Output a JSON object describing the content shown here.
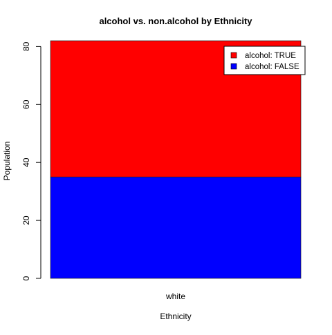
{
  "chart_data": {
    "type": "bar",
    "stacked": true,
    "title": "alcohol vs. non.alcohol by Ethnicity",
    "xlabel": "Ethnicity",
    "ylabel": "Population",
    "categories": [
      "white"
    ],
    "series": [
      {
        "name": "alcohol: FALSE",
        "values": [
          35
        ],
        "color": "#0000FF"
      },
      {
        "name": "alcohol: TRUE",
        "values": [
          47
        ],
        "color": "#FF0000"
      }
    ],
    "legend_order": [
      "alcohol: TRUE",
      "alcohol: FALSE"
    ],
    "ylim": [
      0,
      82
    ],
    "yticks": [
      0,
      20,
      40,
      60,
      80
    ],
    "grid": false,
    "legend_position": "top-right"
  }
}
